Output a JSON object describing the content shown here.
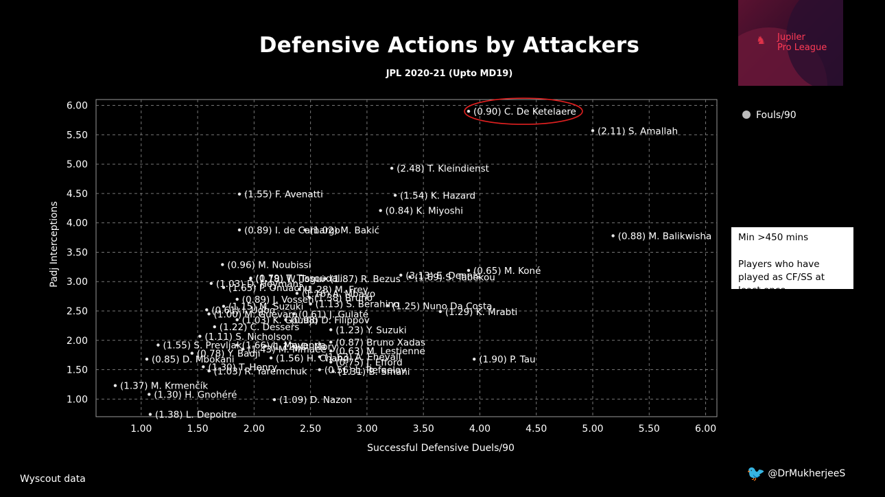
{
  "title": "Defensive Actions by Attackers",
  "subtitle": "JPL 2020-21 (Upto MD19)",
  "logo": {
    "line1": "Jupiler",
    "line2": "Pro League"
  },
  "legend_label": "Fouls/90",
  "note": {
    "line1": "Min >450 mins",
    "line2": "Players who have played as CF/SS at least once"
  },
  "source": "Wyscout data",
  "handle": "@DrMukherjeeS",
  "colors": {
    "background": "#000000",
    "highlight": "#e02020",
    "text": "#ffffff"
  },
  "chart_data": {
    "type": "scatter",
    "xlabel": "Successful Defensive Duels/90",
    "ylabel": "Padj Interceptions",
    "xlim": [
      0.6,
      6.1
    ],
    "ylim": [
      0.7,
      6.1
    ],
    "xticks": [
      "1.00",
      "1.50",
      "2.00",
      "2.50",
      "3.00",
      "3.50",
      "4.00",
      "4.50",
      "5.00",
      "5.50",
      "6.00"
    ],
    "yticks": [
      "1.00",
      "1.50",
      "2.00",
      "2.50",
      "3.00",
      "3.50",
      "4.00",
      "4.50",
      "5.00",
      "5.50",
      "6.00"
    ],
    "grid": true,
    "points": [
      {
        "x": 3.9,
        "y": 5.9,
        "label": "(0.90) C. De Ketelaere",
        "highlight": true
      },
      {
        "x": 5.0,
        "y": 5.57,
        "label": "(2.11) S. Amallah"
      },
      {
        "x": 3.22,
        "y": 4.93,
        "label": "(2.48) T. Kleindienst"
      },
      {
        "x": 3.25,
        "y": 4.47,
        "label": "(1.54) K. Hazard"
      },
      {
        "x": 3.12,
        "y": 4.21,
        "label": "(0.84) K. Miyoshi"
      },
      {
        "x": 1.87,
        "y": 4.49,
        "label": "(1.55) F. Avenatti"
      },
      {
        "x": 1.87,
        "y": 3.88,
        "label": "(0.89) I. de Camargo"
      },
      {
        "x": 2.45,
        "y": 3.88,
        "label": "(1.02) M. Bakić"
      },
      {
        "x": 5.18,
        "y": 3.78,
        "label": "(0.88) M. Balikwisha"
      },
      {
        "x": 3.38,
        "y": 3.08,
        "label": "(1.69) S. Tabekou"
      },
      {
        "x": 3.3,
        "y": 3.11,
        "label": "(3.13) E. Dennis"
      },
      {
        "x": 3.9,
        "y": 3.19,
        "label": "(0.65) M. Koné"
      },
      {
        "x": 1.72,
        "y": 3.29,
        "label": "(0.96) M. Noubissi"
      },
      {
        "x": 1.97,
        "y": 3.06,
        "label": "(0.79) T. Tissoudali"
      },
      {
        "x": 1.62,
        "y": 2.97,
        "label": "(1.03) D. Heymans"
      },
      {
        "x": 1.97,
        "y": 3.05,
        "label": "(1.18) W. Togui"
      },
      {
        "x": 2.63,
        "y": 3.05,
        "label": "(1.87) R. Bezus"
      },
      {
        "x": 1.58,
        "y": 2.52,
        "label": "(0.61) I. Ugbo"
      },
      {
        "x": 1.73,
        "y": 2.9,
        "label": "(1.65) P. Onuachu"
      },
      {
        "x": 2.4,
        "y": 2.87,
        "label": "(1.28) M. Frey"
      },
      {
        "x": 2.38,
        "y": 2.8,
        "label": "(1.16) A. Mbayo"
      },
      {
        "x": 2.49,
        "y": 2.73,
        "label": "(1.38) Bruno"
      },
      {
        "x": 1.85,
        "y": 2.7,
        "label": "(0.89) J. Vossen"
      },
      {
        "x": 2.5,
        "y": 2.62,
        "label": "(1.13) S. Berahino"
      },
      {
        "x": 1.73,
        "y": 2.58,
        "label": "(1.15) M. Suzuki"
      },
      {
        "x": 3.18,
        "y": 2.59,
        "label": "(1.25) Nuno Da Costa"
      },
      {
        "x": 1.6,
        "y": 2.45,
        "label": "(1.00) M. Guevara"
      },
      {
        "x": 2.35,
        "y": 2.45,
        "label": "(0.61) J. Gulaté"
      },
      {
        "x": 1.85,
        "y": 2.35,
        "label": "(1.03) K. Goudjo"
      },
      {
        "x": 2.28,
        "y": 2.35,
        "label": "(0.98) D. Filippov"
      },
      {
        "x": 1.65,
        "y": 2.23,
        "label": "(1.22) C. Dessers"
      },
      {
        "x": 2.68,
        "y": 2.18,
        "label": "(1.23) Y. Suzuki"
      },
      {
        "x": 3.65,
        "y": 2.49,
        "label": "(1.29) K. Mrabti"
      },
      {
        "x": 1.52,
        "y": 2.07,
        "label": "(1.11) S. Nicholson"
      },
      {
        "x": 2.68,
        "y": 1.97,
        "label": "(0.87) Bruno Xadas"
      },
      {
        "x": 1.15,
        "y": 1.92,
        "label": "(1.55) S. Prevljak"
      },
      {
        "x": 1.85,
        "y": 1.92,
        "label": "(1.66) L. Mayenda"
      },
      {
        "x": 2.1,
        "y": 1.9,
        "label": "(1.12) D. Mory"
      },
      {
        "x": 1.45,
        "y": 1.78,
        "label": "(0.78) Y. Badji"
      },
      {
        "x": 1.9,
        "y": 1.85,
        "label": "(1.43) M. Mmaee"
      },
      {
        "x": 2.68,
        "y": 1.82,
        "label": "(0.63) M. Lestienne"
      },
      {
        "x": 1.05,
        "y": 1.68,
        "label": "(0.85) D. Mbokani"
      },
      {
        "x": 2.15,
        "y": 1.7,
        "label": "(1.56) H. Chang"
      },
      {
        "x": 2.58,
        "y": 1.72,
        "label": "(1.63) A. Ehevall"
      },
      {
        "x": 2.68,
        "y": 1.63,
        "label": "(0.75) J. Efford"
      },
      {
        "x": 0.77,
        "y": 1.23,
        "label": "(1.37) M. Krmenčík"
      },
      {
        "x": 1.55,
        "y": 1.55,
        "label": "(1.30) T. Henry"
      },
      {
        "x": 2.58,
        "y": 1.5,
        "label": "(0.56) L. Refaelov"
      },
      {
        "x": 2.7,
        "y": 1.47,
        "label": "(1.31) B. Smani"
      },
      {
        "x": 3.95,
        "y": 1.68,
        "label": "(1.90) P. Tau"
      },
      {
        "x": 1.6,
        "y": 1.48,
        "label": "(1.03) R. Yaremchuk"
      },
      {
        "x": 1.07,
        "y": 1.08,
        "label": "(1.30) H. Gnohéré"
      },
      {
        "x": 2.18,
        "y": 0.99,
        "label": "(1.09) D. Nazon"
      },
      {
        "x": 1.08,
        "y": 0.74,
        "label": "(1.38) L. Depoitre"
      }
    ]
  }
}
